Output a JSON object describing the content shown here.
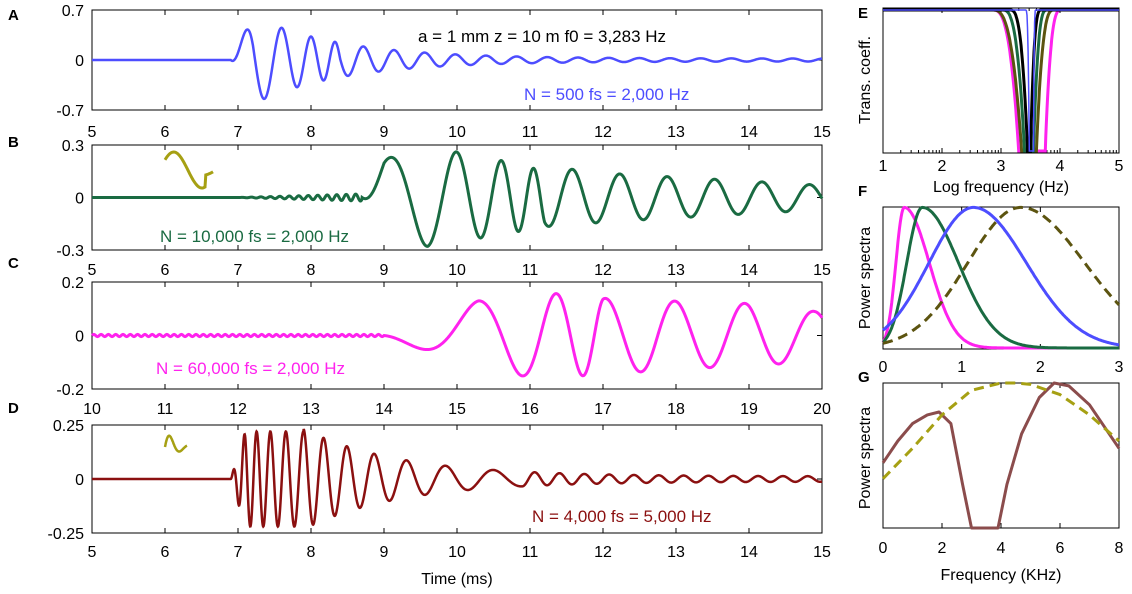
{
  "colors": {
    "blue": "#4d4dff",
    "green": "#1a6b42",
    "magenta": "#ff22ee",
    "darkred": "#8b1010",
    "olive": "#a6a013",
    "darkolive": "#5c5410",
    "brown": "#8b4c4c",
    "black": "#000000"
  },
  "chart_data": [
    {
      "id": "A",
      "panel_label": "A",
      "type": "line",
      "xlabel": "",
      "ylabel": "",
      "xlim": [
        5,
        15
      ],
      "ylim": [
        -0.7,
        0.7
      ],
      "xticks": [
        "5",
        "6",
        "7",
        "8",
        "9",
        "10",
        "11",
        "12",
        "13",
        "14",
        "15"
      ],
      "yticks": [
        "0.7",
        "0",
        "-0.7"
      ],
      "annotations": [
        "a = 1 mm  z = 10 m  f0 = 3,283 Hz",
        "N = 500  fs = 2,000 Hz"
      ],
      "series": [
        {
          "color_key": "blue",
          "onset": 6.9,
          "peaks": [
            [
              7.2,
              0.58
            ],
            [
              7.47,
              -0.62
            ],
            [
              7.78,
              0.35
            ],
            [
              8.1,
              -0.28
            ],
            [
              8.5,
              0.17
            ]
          ],
          "decay_tail": 0.03
        }
      ]
    },
    {
      "id": "B",
      "panel_label": "B",
      "type": "line",
      "xlabel": "",
      "ylabel": "",
      "xlim": [
        5,
        15
      ],
      "ylim": [
        -0.3,
        0.3
      ],
      "xticks": [
        "5",
        "6",
        "7",
        "8",
        "9",
        "10",
        "11",
        "12",
        "13",
        "14",
        "15"
      ],
      "yticks": [
        "0.3",
        "0",
        "-0.3"
      ],
      "annotations": [
        "N = 10,000  fs = 2,000 Hz"
      ],
      "series": [
        {
          "color_key": "green",
          "peaks": [
            [
              9.0,
              0.22
            ],
            [
              9.6,
              -0.28
            ],
            [
              10.0,
              0.26
            ],
            [
              10.45,
              -0.22
            ],
            [
              10.8,
              0.2
            ],
            [
              11.1,
              -0.16
            ],
            [
              11.4,
              0.17
            ],
            [
              12.0,
              0.14
            ],
            [
              15.0,
              0.07
            ]
          ]
        }
      ]
    },
    {
      "id": "C",
      "panel_label": "C",
      "type": "line",
      "xlabel": "",
      "ylabel": "",
      "xlim": [
        10,
        20
      ],
      "ylim": [
        -0.2,
        0.2
      ],
      "xticks": [
        "10",
        "11",
        "12",
        "13",
        "14",
        "15",
        "16",
        "17",
        "18",
        "19",
        "20"
      ],
      "yticks": [
        "0.2",
        "0",
        "-0.2"
      ],
      "annotations": [
        "N = 60,000  fs = 2,000 Hz"
      ],
      "series": [
        {
          "color_key": "magenta",
          "peaks": [
            [
              15.3,
              0.13
            ],
            [
              16.15,
              -0.16
            ],
            [
              16.75,
              0.15
            ],
            [
              17.25,
              -0.13
            ],
            [
              17.7,
              0.14
            ],
            [
              18.2,
              -0.12
            ],
            [
              19.0,
              0.12
            ],
            [
              19.9,
              0.09
            ]
          ]
        }
      ]
    },
    {
      "id": "D",
      "panel_label": "D",
      "type": "line",
      "xlabel": "Time (ms)",
      "ylabel": "",
      "xlim": [
        5,
        15
      ],
      "ylim": [
        -0.25,
        0.25
      ],
      "xticks": [
        "5",
        "6",
        "7",
        "8",
        "9",
        "10",
        "11",
        "12",
        "13",
        "14",
        "15"
      ],
      "yticks": [
        "0.25",
        "0",
        "-0.25"
      ],
      "annotations": [
        "N = 4,000  fs = 5,000 Hz"
      ],
      "series": [
        {
          "color_key": "darkred",
          "onset": 6.9,
          "peaks": [
            [
              7.3,
              0.2
            ],
            [
              7.5,
              -0.22
            ],
            [
              7.85,
              0.22
            ],
            [
              8.5,
              0.12
            ],
            [
              9.2,
              0.09
            ],
            [
              10.0,
              0.06
            ],
            [
              11.5,
              0.04
            ],
            [
              15.0,
              0.01
            ]
          ]
        }
      ]
    },
    {
      "id": "E",
      "panel_label": "E",
      "type": "line",
      "xlabel": "Log frequency (Hz)",
      "ylabel": "Trans. coeff.",
      "xlim": [
        1,
        5
      ],
      "ylim": [
        0,
        1
      ],
      "xscale": "log",
      "xticks": [
        "1",
        "2",
        "3",
        "4",
        "5"
      ],
      "yticks": [],
      "series": [
        {
          "color_key": "magenta",
          "notch_left": 3.3,
          "notch_right": 3.75,
          "width": 0.45
        },
        {
          "color_key": "darkolive",
          "notch_left": 3.35,
          "notch_right": 3.6,
          "width": 0.5
        },
        {
          "color_key": "green",
          "notch_left": 3.4,
          "notch_right": 3.55,
          "width": 0.38
        },
        {
          "color_key": "black",
          "notch_left": 3.45,
          "notch_right": 3.5,
          "width": 0.3
        },
        {
          "color_key": "blue",
          "notch_left": 3.48,
          "notch_right": 3.55,
          "width": 0.06
        }
      ]
    },
    {
      "id": "F",
      "panel_label": "F",
      "type": "line",
      "xlabel": "",
      "ylabel": "Power spectra",
      "xlim": [
        0,
        3
      ],
      "ylim": [
        0,
        1
      ],
      "xticks": [
        "0",
        "1",
        "2",
        "3"
      ],
      "yticks": [],
      "series": [
        {
          "color_key": "magenta",
          "peak_x": 0.27,
          "spread_left": 0.15,
          "spread_right": 0.45
        },
        {
          "color_key": "green",
          "peak_x": 0.5,
          "spread_left": 0.28,
          "spread_right": 0.65
        },
        {
          "color_key": "blue",
          "peak_x": 1.15,
          "spread_left": 0.8,
          "spread_right": 0.95
        },
        {
          "color_key": "darkolive",
          "peak_x": 1.75,
          "spread_left": 0.95,
          "spread_right": 1.15,
          "dashed": true
        }
      ]
    },
    {
      "id": "G",
      "panel_label": "G",
      "type": "line",
      "xlabel": "Frequency (KHz)",
      "ylabel": "Power spectra",
      "xlim": [
        0,
        8
      ],
      "ylim": [
        0,
        1
      ],
      "xticks": [
        "0",
        "2",
        "4",
        "6",
        "8"
      ],
      "yticks": [],
      "series": [
        {
          "color_key": "brown",
          "points": [
            [
              0,
              0.45
            ],
            [
              0.5,
              0.6
            ],
            [
              1,
              0.72
            ],
            [
              1.5,
              0.78
            ],
            [
              1.9,
              0.8
            ],
            [
              2.3,
              0.72
            ],
            [
              2.7,
              0.3
            ],
            [
              3,
              0.0
            ],
            [
              3.9,
              0.0
            ],
            [
              4.2,
              0.3
            ],
            [
              4.7,
              0.65
            ],
            [
              5.3,
              0.9
            ],
            [
              5.8,
              1.0
            ],
            [
              6.3,
              0.98
            ],
            [
              7,
              0.85
            ],
            [
              8,
              0.55
            ]
          ]
        },
        {
          "color_key": "olive",
          "dashed": true,
          "points": [
            [
              0,
              0.34
            ],
            [
              1,
              0.55
            ],
            [
              2,
              0.78
            ],
            [
              3,
              0.95
            ],
            [
              4,
              1.0
            ],
            [
              4.5,
              1.0
            ],
            [
              5,
              0.99
            ],
            [
              6,
              0.92
            ],
            [
              7,
              0.78
            ],
            [
              8,
              0.6
            ]
          ]
        }
      ]
    }
  ],
  "insets": [
    {
      "panel": "B",
      "color_key": "olive",
      "shape": "wavelet-wide"
    },
    {
      "panel": "D",
      "color_key": "olive",
      "shape": "wavelet-narrow"
    }
  ]
}
